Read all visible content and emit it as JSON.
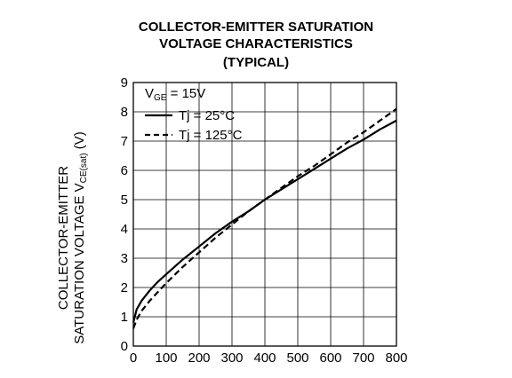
{
  "chart_data": {
    "type": "line",
    "title_lines": [
      "COLLECTOR-EMITTER SATURATION",
      "VOLTAGE CHARACTERISTICS",
      "(TYPICAL)"
    ],
    "ylabel_lines": [
      "COLLECTOR-EMITTER",
      "SATURATION VOLTAGE"
    ],
    "ylabel_symbol": "V",
    "ylabel_subscript": "CE(sat)",
    "ylabel_unit": "(V)",
    "xlabel": "",
    "xlim": [
      0,
      800
    ],
    "ylim": [
      0,
      9
    ],
    "x_ticks": [
      0,
      100,
      200,
      300,
      400,
      500,
      600,
      700,
      800
    ],
    "y_ticks": [
      0,
      1,
      2,
      3,
      4,
      5,
      6,
      7,
      8,
      9
    ],
    "grid": true,
    "legend": {
      "condition_symbol": "V",
      "condition_subscript": "GE",
      "condition_value": " = 15V",
      "placement": "top-left"
    },
    "series": [
      {
        "name": "Tj = 25°C",
        "style": "solid",
        "x": [
          0,
          10,
          25,
          50,
          75,
          100,
          150,
          200,
          250,
          300,
          350,
          400,
          450,
          500,
          550,
          600,
          650,
          700,
          750,
          800
        ],
        "y": [
          0.8,
          1.25,
          1.55,
          1.9,
          2.2,
          2.45,
          2.95,
          3.4,
          3.85,
          4.25,
          4.6,
          5.0,
          5.35,
          5.7,
          6.05,
          6.4,
          6.75,
          7.05,
          7.4,
          7.7
        ]
      },
      {
        "name": "Tj = 125°C",
        "style": "dashed",
        "x": [
          0,
          10,
          25,
          50,
          75,
          100,
          150,
          200,
          250,
          300,
          350,
          400,
          450,
          500,
          550,
          600,
          650,
          700,
          750,
          800
        ],
        "y": [
          0.6,
          0.9,
          1.2,
          1.55,
          1.85,
          2.15,
          2.7,
          3.2,
          3.7,
          4.15,
          4.6,
          5.0,
          5.4,
          5.8,
          6.15,
          6.55,
          6.95,
          7.3,
          7.7,
          8.1
        ]
      }
    ]
  }
}
